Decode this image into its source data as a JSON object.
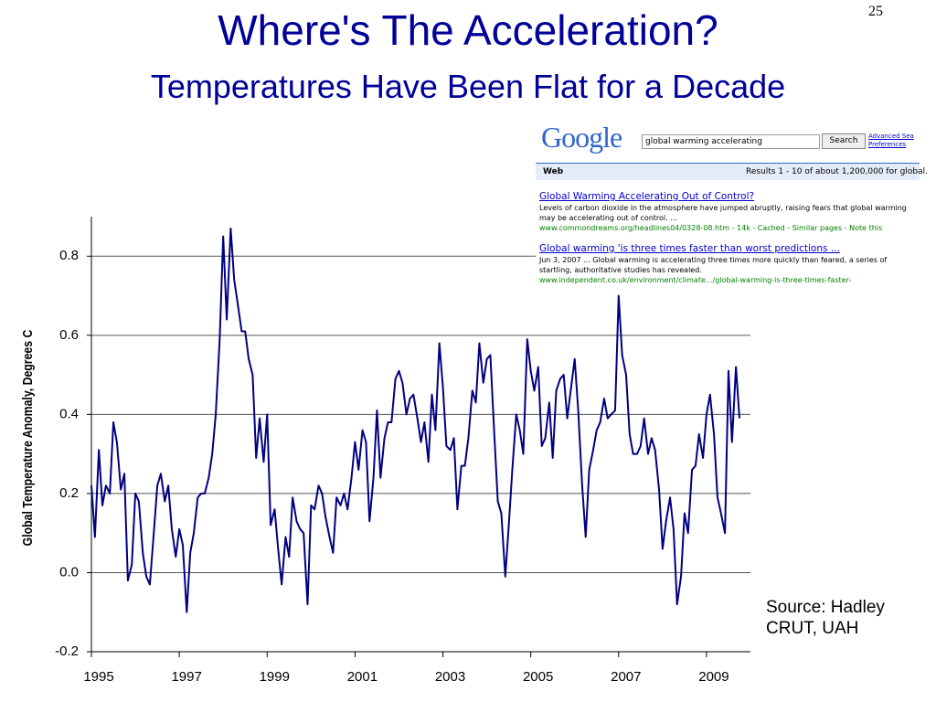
{
  "slide": {
    "page_number": "25",
    "title": "Where's The Acceleration?",
    "subtitle": "Temperatures Have Been Flat for a Decade",
    "source": "Source:  Hadley CRUT, UAH"
  },
  "google_inset": {
    "logo": "Google",
    "query": "global warming accelerating",
    "button": "Search",
    "links": [
      "Advanced Sea",
      "Preferences"
    ],
    "tab": "Web",
    "results_count": "Results 1 - 10 of about 1,200,000 for global.",
    "results": [
      {
        "title": "Global Warming Accelerating Out of Control?",
        "snippet": "Levels of carbon dioxide in the atmosphere have jumped abruptly, raising fears that global warming may be accelerating out of control. ...",
        "url": "www.commondreams.org/headlines04/0328-08.htm - 14k - Cached - Similar pages - Note this"
      },
      {
        "title": "Global warming 'is three times faster than worst predictions ...",
        "snippet": "Jun 3, 2007 ... Global warming is accelerating three times more quickly than feared, a series of startling, authoritative studies has revealed.",
        "url": "www.independent.co.uk/environment/climate.../global-warming-is-three-times-faster-"
      }
    ]
  },
  "chart_data": {
    "type": "line",
    "y_label": "Global Temperature Anomaly, Degrees C",
    "color": "#000080",
    "grid": true,
    "xlim": [
      1995,
      2010
    ],
    "xticks": [
      1995,
      1997,
      1999,
      2001,
      2003,
      2005,
      2007,
      2009
    ],
    "ylim": [
      -0.2,
      0.9
    ],
    "yticks": [
      -0.2,
      {
        "value": 0,
        "label": "0.0"
      },
      0.2,
      0.4,
      0.6,
      0.8
    ],
    "x": [
      1995,
      1995.08,
      1995.17,
      1995.25,
      1995.33,
      1995.42,
      1995.5,
      1995.58,
      1995.67,
      1995.75,
      1995.83,
      1995.92,
      1996,
      1996.08,
      1996.17,
      1996.25,
      1996.33,
      1996.42,
      1996.5,
      1996.58,
      1996.67,
      1996.75,
      1996.83,
      1996.92,
      1997,
      1997.08,
      1997.17,
      1997.25,
      1997.33,
      1997.42,
      1997.5,
      1997.58,
      1997.67,
      1997.75,
      1997.83,
      1997.92,
      1998,
      1998.08,
      1998.17,
      1998.25,
      1998.33,
      1998.42,
      1998.5,
      1998.58,
      1998.67,
      1998.75,
      1998.83,
      1998.92,
      1999,
      1999.08,
      1999.17,
      1999.25,
      1999.33,
      1999.42,
      1999.5,
      1999.58,
      1999.67,
      1999.75,
      1999.83,
      1999.92,
      2000,
      2000.08,
      2000.17,
      2000.25,
      2000.33,
      2000.42,
      2000.5,
      2000.58,
      2000.67,
      2000.75,
      2000.83,
      2000.92,
      2001,
      2001.08,
      2001.17,
      2001.25,
      2001.33,
      2001.42,
      2001.5,
      2001.58,
      2001.67,
      2001.75,
      2001.83,
      2001.92,
      2002,
      2002.08,
      2002.17,
      2002.25,
      2002.33,
      2002.42,
      2002.5,
      2002.58,
      2002.67,
      2002.75,
      2002.83,
      2002.92,
      2003,
      2003.08,
      2003.17,
      2003.25,
      2003.33,
      2003.42,
      2003.5,
      2003.58,
      2003.67,
      2003.75,
      2003.83,
      2003.92,
      2004,
      2004.08,
      2004.17,
      2004.25,
      2004.33,
      2004.42,
      2004.5,
      2004.58,
      2004.67,
      2004.75,
      2004.83,
      2004.92,
      2005,
      2005.08,
      2005.17,
      2005.25,
      2005.33,
      2005.42,
      2005.5,
      2005.58,
      2005.67,
      2005.75,
      2005.83,
      2005.92,
      2006,
      2006.08,
      2006.17,
      2006.25,
      2006.33,
      2006.42,
      2006.5,
      2006.58,
      2006.67,
      2006.75,
      2006.83,
      2006.92,
      2007,
      2007.08,
      2007.17,
      2007.25,
      2007.33,
      2007.42,
      2007.5,
      2007.58,
      2007.67,
      2007.75,
      2007.83,
      2007.92,
      2008,
      2008.08,
      2008.17,
      2008.25,
      2008.33,
      2008.42,
      2008.5,
      2008.58,
      2008.67,
      2008.75,
      2008.83,
      2008.92,
      2009,
      2009.08,
      2009.17,
      2009.25,
      2009.33,
      2009.42,
      2009.5,
      2009.58,
      2009.67,
      2009.75
    ],
    "values": [
      0.22,
      0.09,
      0.31,
      0.17,
      0.22,
      0.2,
      0.38,
      0.33,
      0.21,
      0.25,
      -0.02,
      0.02,
      0.2,
      0.18,
      0.05,
      -0.01,
      -0.03,
      0.1,
      0.22,
      0.25,
      0.18,
      0.22,
      0.11,
      0.04,
      0.11,
      0.07,
      -0.1,
      0.05,
      0.1,
      0.19,
      0.2,
      0.2,
      0.24,
      0.3,
      0.4,
      0.59,
      0.85,
      0.64,
      0.87,
      0.74,
      0.68,
      0.61,
      0.61,
      0.54,
      0.5,
      0.29,
      0.39,
      0.28,
      0.4,
      0.12,
      0.16,
      0.06,
      -0.03,
      0.09,
      0.04,
      0.19,
      0.13,
      0.11,
      0.1,
      -0.08,
      0.17,
      0.16,
      0.22,
      0.2,
      0.14,
      0.09,
      0.05,
      0.19,
      0.17,
      0.2,
      0.16,
      0.24,
      0.33,
      0.26,
      0.36,
      0.33,
      0.13,
      0.24,
      0.41,
      0.24,
      0.34,
      0.38,
      0.38,
      0.49,
      0.51,
      0.48,
      0.4,
      0.44,
      0.45,
      0.39,
      0.33,
      0.38,
      0.28,
      0.45,
      0.36,
      0.58,
      0.47,
      0.32,
      0.31,
      0.34,
      0.16,
      0.27,
      0.27,
      0.34,
      0.46,
      0.43,
      0.58,
      0.48,
      0.54,
      0.55,
      0.35,
      0.18,
      0.15,
      -0.01,
      0.12,
      0.26,
      0.4,
      0.36,
      0.3,
      0.59,
      0.51,
      0.46,
      0.52,
      0.32,
      0.34,
      0.43,
      0.29,
      0.46,
      0.49,
      0.5,
      0.39,
      0.47,
      0.54,
      0.41,
      0.22,
      0.09,
      0.26,
      0.31,
      0.36,
      0.38,
      0.44,
      0.39,
      0.4,
      0.41,
      0.7,
      0.55,
      0.5,
      0.35,
      0.3,
      0.3,
      0.32,
      0.39,
      0.3,
      0.34,
      0.31,
      0.21,
      0.06,
      0.13,
      0.19,
      0.11,
      -0.08,
      -0.01,
      0.15,
      0.1,
      0.26,
      0.27,
      0.35,
      0.29,
      0.4,
      0.45,
      0.35,
      0.19,
      0.15,
      0.1,
      0.51,
      0.33,
      0.52,
      0.39
    ]
  }
}
